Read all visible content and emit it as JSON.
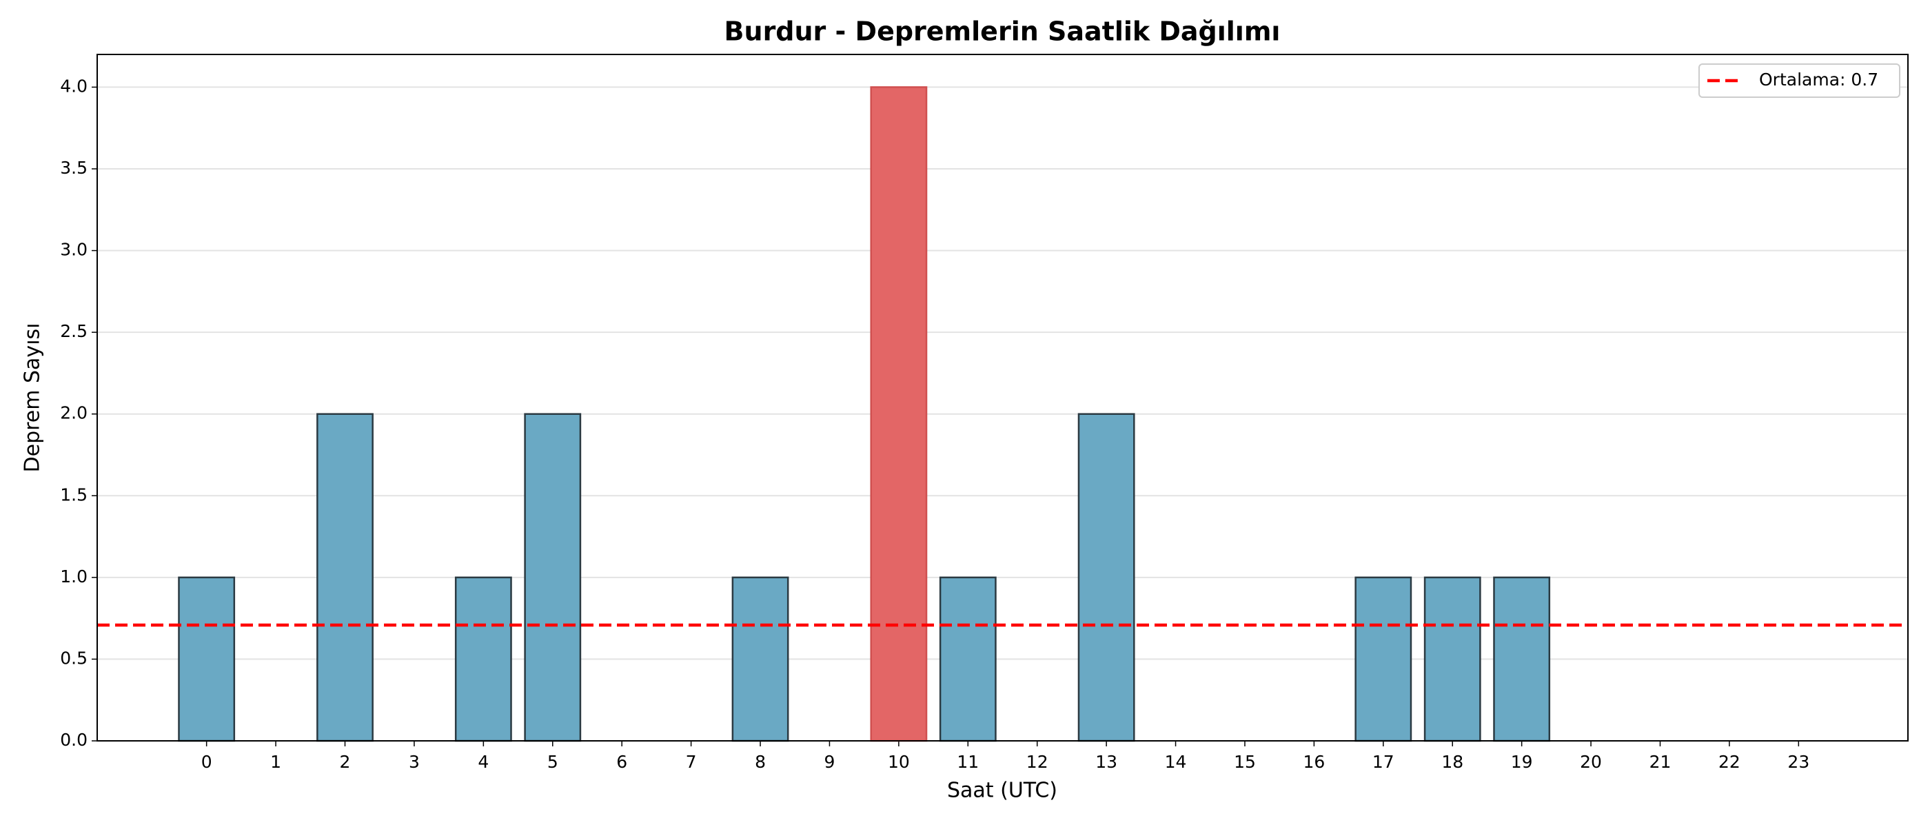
{
  "chart_data": {
    "type": "bar",
    "title": "Burdur - Depremlerin Saatlik Dağılımı",
    "x_label": "Saat (UTC)",
    "y_label": "Deprem Sayısı",
    "x": [
      0,
      1,
      2,
      3,
      4,
      5,
      6,
      7,
      8,
      9,
      10,
      11,
      12,
      13,
      14,
      15,
      16,
      17,
      18,
      19,
      20,
      21,
      22,
      23
    ],
    "values": [
      1,
      0,
      2,
      0,
      1,
      2,
      0,
      0,
      1,
      0,
      4,
      1,
      0,
      2,
      0,
      0,
      0,
      1,
      1,
      1,
      0,
      0,
      0,
      0
    ],
    "colors": [
      "#6aa9c4",
      "#6aa9c4",
      "#6aa9c4",
      "#6aa9c4",
      "#6aa9c4",
      "#6aa9c4",
      "#6aa9c4",
      "#6aa9c4",
      "#6aa9c4",
      "#6aa9c4",
      "#e36666",
      "#6aa9c4",
      "#6aa9c4",
      "#6aa9c4",
      "#6aa9c4",
      "#6aa9c4",
      "#6aa9c4",
      "#6aa9c4",
      "#6aa9c4",
      "#6aa9c4",
      "#6aa9c4",
      "#6aa9c4",
      "#6aa9c4",
      "#6aa9c4"
    ],
    "mean": {
      "value": 0.7083,
      "label": "Ortalama: 0.7",
      "color": "#ff0000"
    },
    "xlim": [
      -1.58,
      24.58
    ],
    "xticks": [
      0,
      1,
      2,
      3,
      4,
      5,
      6,
      7,
      8,
      9,
      10,
      11,
      12,
      13,
      14,
      15,
      16,
      17,
      18,
      19,
      20,
      21,
      22,
      23
    ],
    "ylim": [
      0,
      4.2
    ],
    "yticks": [
      {
        "value": 0,
        "label": "0.0"
      },
      {
        "value": 0.5,
        "label": "0.5"
      },
      {
        "value": 1,
        "label": "1.0"
      },
      {
        "value": 1.5,
        "label": "1.5"
      },
      {
        "value": 2,
        "label": "2.0"
      },
      {
        "value": 2.5,
        "label": "2.5"
      },
      {
        "value": 3,
        "label": "3.0"
      },
      {
        "value": 3.5,
        "label": "3.5"
      },
      {
        "value": 4,
        "label": "4.0"
      }
    ],
    "grid": true,
    "legend": "upper right"
  }
}
